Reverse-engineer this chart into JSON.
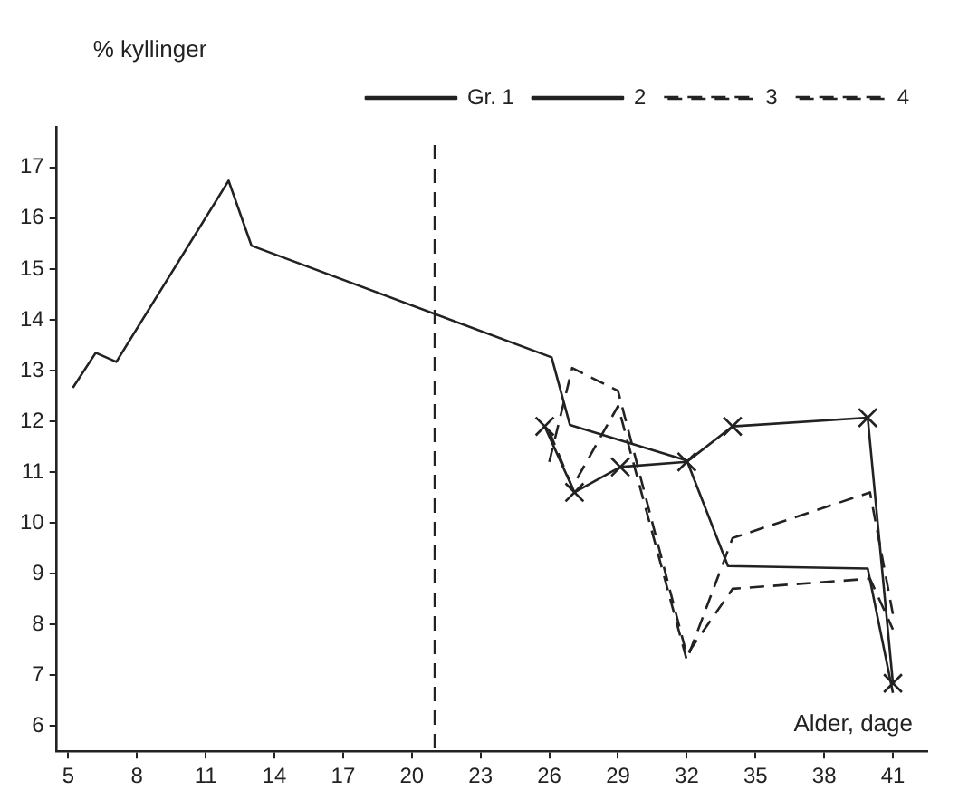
{
  "chart_data": {
    "type": "line",
    "xlabel": "Alder, dage",
    "ylabel": "% kyllinger",
    "xlim": [
      4.5,
      42.5
    ],
    "ylim": [
      5.5,
      17.8
    ],
    "xticks": [
      5,
      8,
      11,
      14,
      17,
      20,
      23,
      26,
      29,
      32,
      35,
      38,
      41
    ],
    "yticks": [
      6,
      7,
      8,
      9,
      10,
      11,
      12,
      13,
      14,
      15,
      16,
      17
    ],
    "grid": false,
    "legend": "top right",
    "marker": "none",
    "ref_lines": [
      {
        "axis": "x",
        "value": 21,
        "line_style": "dashed",
        "color": "#222222"
      }
    ],
    "series": [
      {
        "name": "Gr. 1",
        "color": "#222222",
        "line_style": "solid",
        "x": [
          5.2,
          6.2,
          7.1,
          12,
          13,
          26.1,
          26.9,
          32,
          33.8,
          39.9,
          41
        ],
        "values": [
          12.66,
          13.35,
          13.17,
          16.74,
          15.46,
          13.26,
          11.93,
          11.23,
          9.15,
          9.1,
          6.65
        ]
      },
      {
        "name": "2",
        "color": "#222222",
        "line_style": "solid",
        "marker": "cross",
        "x": [
          25.8,
          27.1,
          29.1,
          32,
          34,
          39.9,
          41
        ],
        "values": [
          11.9,
          10.6,
          11.1,
          11.2,
          11.9,
          12.07,
          6.84
        ]
      },
      {
        "name": "3",
        "color": "#222222",
        "line_style": "dashed",
        "x": [
          26,
          27,
          29,
          32,
          34,
          40,
          41
        ],
        "values": [
          11.2,
          13.05,
          12.6,
          7.4,
          8.7,
          8.9,
          7.9
        ]
      },
      {
        "name": "4",
        "color": "#222222",
        "line_style": "dashed",
        "x": [
          26,
          27,
          29,
          32,
          34,
          40,
          41
        ],
        "values": [
          11.8,
          10.7,
          12.3,
          7.3,
          9.7,
          10.6,
          8.2
        ]
      }
    ]
  }
}
